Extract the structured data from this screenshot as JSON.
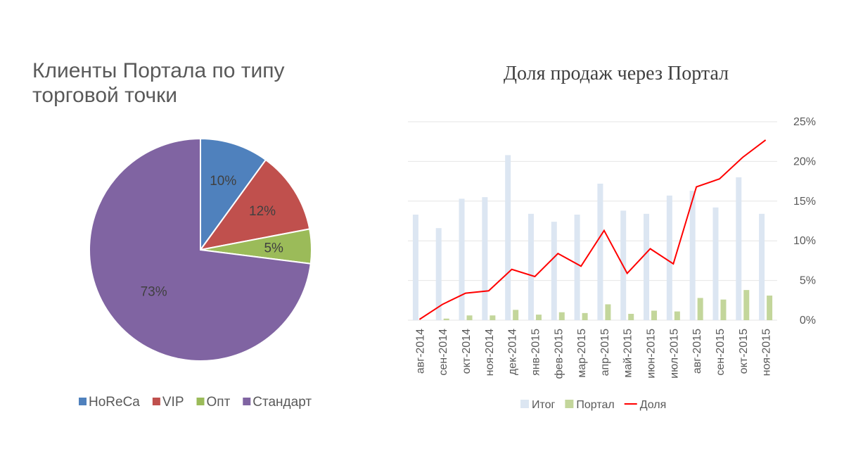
{
  "chart_data": [
    {
      "type": "pie",
      "title_lines": [
        "Клиенты Портала по типу",
        "торговой точки"
      ],
      "categories": [
        "HoReCa",
        "VIP",
        "Опт",
        "Стандарт"
      ],
      "values": [
        10,
        12,
        5,
        73
      ],
      "labels": [
        "10%",
        "12%",
        "5%",
        "73%"
      ],
      "colors": [
        "#4f81bd",
        "#c0504d",
        "#9bbb59",
        "#8064a2"
      ],
      "legend_position": "bottom"
    },
    {
      "type": "bar",
      "title": "Доля продаж через Портал",
      "categories": [
        "авг-2014",
        "сен-2014",
        "окт-2014",
        "ноя-2014",
        "дек-2014",
        "янв-2015",
        "фев-2015",
        "мар-2015",
        "апр-2015",
        "май-2015",
        "июн-2015",
        "июл-2015",
        "авг-2015",
        "сен-2015",
        "окт-2015",
        "ноя-2015"
      ],
      "series": [
        {
          "name": "Итог",
          "kind": "bar",
          "color": "#dce6f2",
          "values": [
            13.3,
            11.6,
            15.3,
            15.5,
            20.8,
            13.4,
            12.4,
            13.3,
            17.2,
            13.8,
            13.4,
            15.7,
            16.3,
            14.2,
            18.0,
            13.4
          ]
        },
        {
          "name": "Портал",
          "kind": "bar",
          "color": "#c3d69b",
          "values": [
            0.0,
            0.2,
            0.6,
            0.6,
            1.3,
            0.7,
            1.0,
            0.9,
            2.0,
            0.8,
            1.2,
            1.1,
            2.8,
            2.6,
            3.8,
            3.1
          ]
        },
        {
          "name": "Доля",
          "kind": "line",
          "color": "#ff0000",
          "values": [
            0.1,
            2.0,
            3.4,
            3.7,
            6.4,
            5.5,
            8.4,
            6.8,
            11.3,
            5.9,
            9.0,
            7.1,
            16.8,
            17.8,
            20.5,
            22.7
          ]
        }
      ],
      "ylim": [
        0,
        25
      ],
      "y_ticks": [
        "0%",
        "5%",
        "10%",
        "15%",
        "20%",
        "25%"
      ],
      "y_axis_side": "right",
      "grid": true,
      "legend_position": "bottom"
    }
  ]
}
